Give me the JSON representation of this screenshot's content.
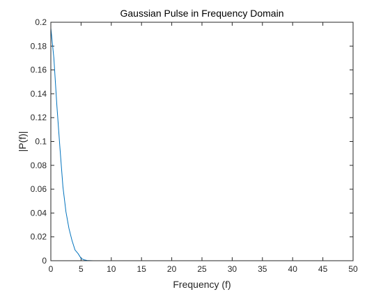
{
  "chart_data": {
    "type": "line",
    "title": "Gaussian Pulse in Frequency Domain",
    "xlabel": "Frequency (f)",
    "ylabel": "|P(f)|",
    "xlim": [
      0,
      50
    ],
    "ylim": [
      0,
      0.2
    ],
    "xticks": [
      0,
      5,
      10,
      15,
      20,
      25,
      30,
      35,
      40,
      45,
      50
    ],
    "xtick_labels": [
      "0",
      "5",
      "10",
      "15",
      "20",
      "25",
      "30",
      "35",
      "40",
      "45",
      "50"
    ],
    "yticks": [
      0,
      0.02,
      0.04,
      0.06,
      0.08,
      0.1,
      0.12,
      0.14,
      0.16,
      0.18,
      0.2
    ],
    "ytick_labels": [
      "0",
      "0.02",
      "0.04",
      "0.06",
      "0.08",
      "0.1",
      "0.12",
      "0.14",
      "0.16",
      "0.18",
      "0.2"
    ],
    "grid": false,
    "series": [
      {
        "color": "#0072BD",
        "x": [
          0,
          0.5,
          1,
          1.5,
          2,
          2.5,
          3,
          3.5,
          4,
          4.5,
          5,
          5.5,
          6,
          7,
          8,
          10,
          15,
          20,
          25,
          30,
          35,
          40,
          45,
          50
        ],
        "y": [
          0.195,
          0.17,
          0.13,
          0.095,
          0.062,
          0.041,
          0.027,
          0.017,
          0.009,
          0.006,
          0.002,
          0.0007,
          0.0002,
          3e-05,
          0,
          0,
          0,
          0,
          0,
          0,
          0,
          0,
          0,
          0
        ]
      }
    ]
  }
}
